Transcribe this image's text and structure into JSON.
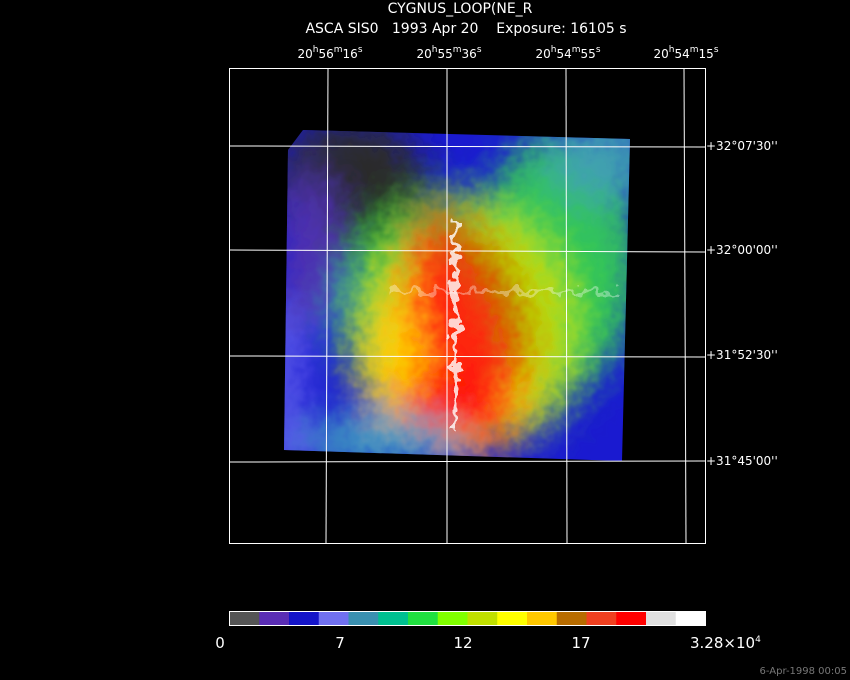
{
  "header": {
    "title": "CYGNUS_LOOP(NE_R",
    "subtitle": "ASCA SIS0   1993 Apr 20    Exposure: 16105 s"
  },
  "ra_units": [
    "h",
    "m",
    "s"
  ],
  "ra_labels": [
    {
      "h": "20",
      "m": "56",
      "s": "16"
    },
    {
      "h": "20",
      "m": "55",
      "s": "36"
    },
    {
      "h": "20",
      "m": "54",
      "s": "55"
    },
    {
      "h": "20",
      "m": "54",
      "s": "15"
    }
  ],
  "dec_labels": [
    "+32°07'30''",
    "+32°00'00''",
    "+31°52'30''",
    "+31°45'00''"
  ],
  "colorbar": {
    "colors": [
      "#555555",
      "#5a2db4",
      "#1414c8",
      "#7070f0",
      "#3a90b0",
      "#00c090",
      "#20e040",
      "#80ff00",
      "#c0e000",
      "#ffff00",
      "#ffc800",
      "#b86c00",
      "#f04020",
      "#ff0000",
      "#e0e0e0",
      "#ffffff"
    ],
    "labels": [
      "0",
      "7",
      "12",
      "17"
    ],
    "max_label": {
      "mantissa": "3.28×10",
      "exponent": "4"
    }
  },
  "footer": {
    "timestamp": "6-Apr-1998 00:05"
  }
}
